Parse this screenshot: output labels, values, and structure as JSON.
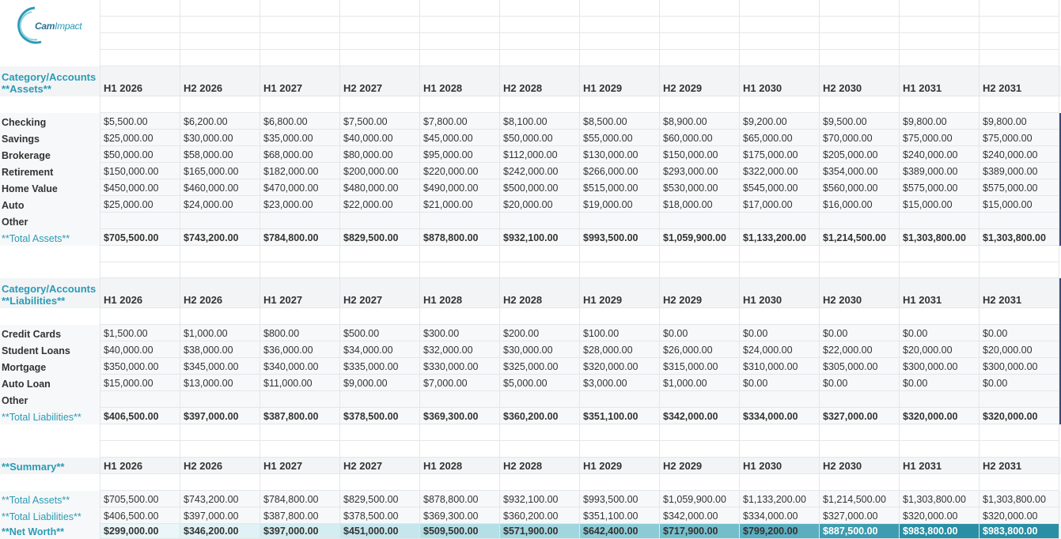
{
  "logo": {
    "part1": "Cam",
    "part2": "Impact"
  },
  "periods": [
    "H1 2026",
    "H2 2026",
    "H1 2027",
    "H2 2027",
    "H1 2028",
    "H2 2028",
    "H1 2029",
    "H2 2029",
    "H1 2030",
    "H2 2030",
    "H1 2031",
    "H2 2031"
  ],
  "assets": {
    "header_line1": "Category/Accounts",
    "header_line2": "**Assets**",
    "rows": [
      {
        "label": "Checking",
        "values": [
          "$5,500.00",
          "$6,200.00",
          "$6,800.00",
          "$7,500.00",
          "$7,800.00",
          "$8,100.00",
          "$8,500.00",
          "$8,900.00",
          "$9,200.00",
          "$9,500.00",
          "$9,800.00",
          "$9,800.00"
        ]
      },
      {
        "label": "Savings",
        "values": [
          "$25,000.00",
          "$30,000.00",
          "$35,000.00",
          "$40,000.00",
          "$45,000.00",
          "$50,000.00",
          "$55,000.00",
          "$60,000.00",
          "$65,000.00",
          "$70,000.00",
          "$75,000.00",
          "$75,000.00"
        ]
      },
      {
        "label": "Brokerage",
        "values": [
          "$50,000.00",
          "$58,000.00",
          "$68,000.00",
          "$80,000.00",
          "$95,000.00",
          "$112,000.00",
          "$130,000.00",
          "$150,000.00",
          "$175,000.00",
          "$205,000.00",
          "$240,000.00",
          "$240,000.00"
        ]
      },
      {
        "label": "Retirement",
        "values": [
          "$150,000.00",
          "$165,000.00",
          "$182,000.00",
          "$200,000.00",
          "$220,000.00",
          "$242,000.00",
          "$266,000.00",
          "$293,000.00",
          "$322,000.00",
          "$354,000.00",
          "$389,000.00",
          "$389,000.00"
        ]
      },
      {
        "label": "Home Value",
        "values": [
          "$450,000.00",
          "$460,000.00",
          "$470,000.00",
          "$480,000.00",
          "$490,000.00",
          "$500,000.00",
          "$515,000.00",
          "$530,000.00",
          "$545,000.00",
          "$560,000.00",
          "$575,000.00",
          "$575,000.00"
        ]
      },
      {
        "label": "Auto",
        "values": [
          "$25,000.00",
          "$24,000.00",
          "$23,000.00",
          "$22,000.00",
          "$21,000.00",
          "$20,000.00",
          "$19,000.00",
          "$18,000.00",
          "$17,000.00",
          "$16,000.00",
          "$15,000.00",
          "$15,000.00"
        ]
      },
      {
        "label": "Other",
        "values": [
          "",
          "",
          "",
          "",
          "",
          "",
          "",
          "",
          "",
          "",
          "",
          ""
        ]
      }
    ],
    "total": {
      "label": "**Total Assets**",
      "values": [
        "$705,500.00",
        "$743,200.00",
        "$784,800.00",
        "$829,500.00",
        "$878,800.00",
        "$932,100.00",
        "$993,500.00",
        "$1,059,900.00",
        "$1,133,200.00",
        "$1,214,500.00",
        "$1,303,800.00",
        "$1,303,800.00"
      ]
    }
  },
  "liabilities": {
    "header_line1": "Category/Accounts",
    "header_line2": "**Liabilities**",
    "rows": [
      {
        "label": "Credit Cards",
        "values": [
          "$1,500.00",
          "$1,000.00",
          "$800.00",
          "$500.00",
          "$300.00",
          "$200.00",
          "$100.00",
          "$0.00",
          "$0.00",
          "$0.00",
          "$0.00",
          "$0.00"
        ]
      },
      {
        "label": "Student Loans",
        "values": [
          "$40,000.00",
          "$38,000.00",
          "$36,000.00",
          "$34,000.00",
          "$32,000.00",
          "$30,000.00",
          "$28,000.00",
          "$26,000.00",
          "$24,000.00",
          "$22,000.00",
          "$20,000.00",
          "$20,000.00"
        ]
      },
      {
        "label": "Mortgage",
        "values": [
          "$350,000.00",
          "$345,000.00",
          "$340,000.00",
          "$335,000.00",
          "$330,000.00",
          "$325,000.00",
          "$320,000.00",
          "$315,000.00",
          "$310,000.00",
          "$305,000.00",
          "$300,000.00",
          "$300,000.00"
        ]
      },
      {
        "label": "Auto Loan",
        "values": [
          "$15,000.00",
          "$13,000.00",
          "$11,000.00",
          "$9,000.00",
          "$7,000.00",
          "$5,000.00",
          "$3,000.00",
          "$1,000.00",
          "$0.00",
          "$0.00",
          "$0.00",
          "$0.00"
        ]
      },
      {
        "label": "Other",
        "values": [
          "",
          "",
          "",
          "",
          "",
          "",
          "",
          "",
          "",
          "",
          "",
          ""
        ]
      }
    ],
    "total": {
      "label": "**Total Liabilities**",
      "values": [
        "$406,500.00",
        "$397,000.00",
        "$387,800.00",
        "$378,500.00",
        "$369,300.00",
        "$360,200.00",
        "$351,100.00",
        "$342,000.00",
        "$334,000.00",
        "$327,000.00",
        "$320,000.00",
        "$320,000.00"
      ]
    }
  },
  "summary": {
    "header": "**Summary**",
    "rows": [
      {
        "label": "**Total Assets**",
        "values": [
          "$705,500.00",
          "$743,200.00",
          "$784,800.00",
          "$829,500.00",
          "$878,800.00",
          "$932,100.00",
          "$993,500.00",
          "$1,059,900.00",
          "$1,133,200.00",
          "$1,214,500.00",
          "$1,303,800.00",
          "$1,303,800.00"
        ]
      },
      {
        "label": "**Total Liabilities**",
        "values": [
          "$406,500.00",
          "$397,000.00",
          "$387,800.00",
          "$378,500.00",
          "$369,300.00",
          "$360,200.00",
          "$351,100.00",
          "$342,000.00",
          "$334,000.00",
          "$327,000.00",
          "$320,000.00",
          "$320,000.00"
        ]
      }
    ],
    "net_worth": {
      "label": "**Net Worth**",
      "values": [
        "$299,000.00",
        "$346,200.00",
        "$397,000.00",
        "$451,000.00",
        "$509,500.00",
        "$571,900.00",
        "$642,400.00",
        "$717,900.00",
        "$799,200.00",
        "$887,500.00",
        "$983,800.00",
        "$983,800.00"
      ],
      "colors": [
        "#eaf6f8",
        "#e0f2f5",
        "#d3edf1",
        "#c4e6ec",
        "#b3dfe6",
        "#a1d6df",
        "#8ccbd6",
        "#74becc",
        "#5aaebf",
        "#3f9cb0",
        "#2a8ea4",
        "#2a8ea4"
      ],
      "text_colors": [
        "#333333",
        "#333333",
        "#333333",
        "#333333",
        "#333333",
        "#333333",
        "#333333",
        "#333333",
        "#333333",
        "#ffffff",
        "#ffffff",
        "#ffffff"
      ]
    }
  },
  "colors": {
    "accent": "#2a9bb5",
    "header_bg": "#f2f4f6",
    "grid": "#e4e6e9"
  }
}
